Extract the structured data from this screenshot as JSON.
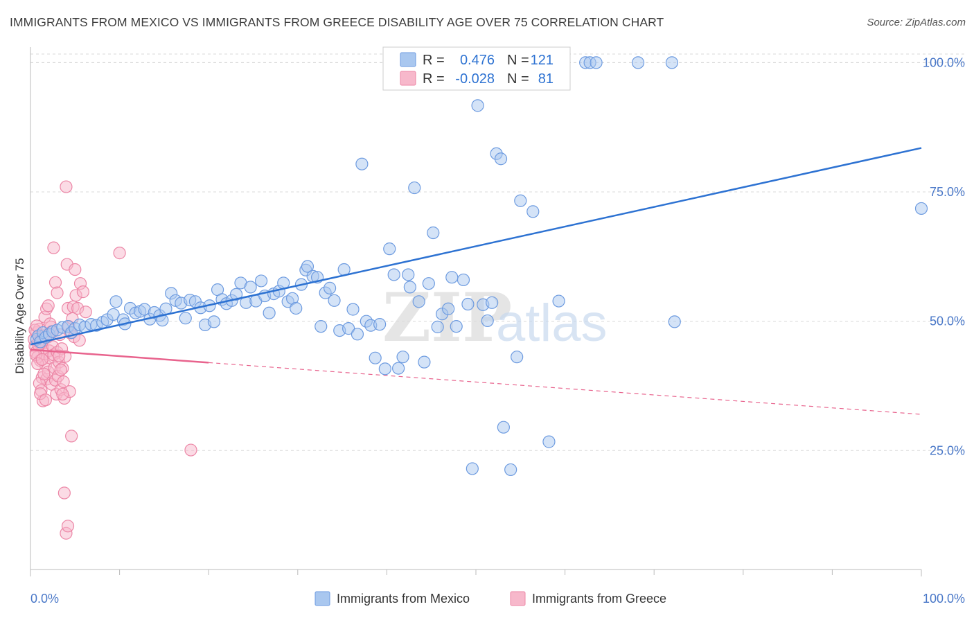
{
  "header": {
    "title": "IMMIGRANTS FROM MEXICO VS IMMIGRANTS FROM GREECE DISABILITY AGE OVER 75 CORRELATION CHART",
    "source": "Source: ZipAtlas.com"
  },
  "watermark": {
    "zip": "ZIP",
    "atlas": "atlas"
  },
  "colors": {
    "mexico_fill": "#a9c7ef",
    "mexico_stroke": "#6d9be0",
    "mexico_line": "#2d72d2",
    "greece_fill": "#f7b8cb",
    "greece_stroke": "#ec86a6",
    "greece_line": "#e8638d",
    "tick_label": "#4a78c8",
    "grid": "#d8d8d8"
  },
  "legend": {
    "rows": [
      {
        "r_label": "R =",
        "r_value": "0.476",
        "n_label": "N =",
        "n_value": "121"
      },
      {
        "r_label": "R =",
        "r_value": "-0.028",
        "n_label": "N =",
        "n_value": "81"
      }
    ]
  },
  "chart_data": {
    "type": "scatter",
    "ylabel": "Disability Age Over 75",
    "xlim": [
      0,
      100
    ],
    "ylim": [
      2,
      103
    ],
    "y_ticks": [
      25,
      50,
      75,
      100
    ],
    "y_tick_labels": [
      "25.0%",
      "50.0%",
      "75.0%",
      "100.0%"
    ],
    "x_tick_labels": [
      "0.0%",
      "100.0%"
    ],
    "grid": true,
    "legend_position": "top-center",
    "series": [
      {
        "name": "Immigrants from Mexico",
        "trend": {
          "x0": 0,
          "y0": 45.5,
          "x1": 100,
          "y1": 83.5,
          "dashed_from": null
        },
        "points": [
          [
            0.7,
            46.5
          ],
          [
            0.9,
            47.2
          ],
          [
            1.1,
            46.0
          ],
          [
            1.4,
            47.8
          ],
          [
            1.7,
            46.9
          ],
          [
            2.1,
            47.5
          ],
          [
            2.5,
            48.0
          ],
          [
            3.0,
            48.3
          ],
          [
            3.6,
            48.8
          ],
          [
            4.2,
            49.0
          ],
          [
            4.6,
            47.8
          ],
          [
            5.0,
            48.6
          ],
          [
            5.5,
            49.3
          ],
          [
            6.1,
            48.9
          ],
          [
            6.8,
            49.4
          ],
          [
            7.4,
            49.2
          ],
          [
            8.1,
            49.8
          ],
          [
            8.6,
            50.3
          ],
          [
            9.3,
            51.3
          ],
          [
            9.6,
            53.8
          ],
          [
            10.4,
            50.3
          ],
          [
            10.6,
            49.5
          ],
          [
            11.2,
            52.5
          ],
          [
            11.8,
            51.6
          ],
          [
            12.3,
            51.9
          ],
          [
            12.8,
            52.3
          ],
          [
            13.4,
            50.4
          ],
          [
            13.9,
            51.7
          ],
          [
            14.5,
            51.1
          ],
          [
            14.8,
            50.2
          ],
          [
            15.2,
            52.4
          ],
          [
            15.8,
            55.4
          ],
          [
            16.3,
            54.0
          ],
          [
            16.9,
            53.5
          ],
          [
            17.4,
            50.6
          ],
          [
            17.9,
            54.1
          ],
          [
            18.5,
            53.8
          ],
          [
            19.1,
            52.6
          ],
          [
            19.6,
            49.3
          ],
          [
            20.1,
            53.0
          ],
          [
            20.6,
            49.9
          ],
          [
            21.0,
            56.1
          ],
          [
            21.5,
            54.2
          ],
          [
            22.0,
            53.4
          ],
          [
            22.6,
            54.0
          ],
          [
            23.1,
            55.2
          ],
          [
            23.6,
            57.4
          ],
          [
            24.2,
            53.6
          ],
          [
            24.7,
            56.6
          ],
          [
            25.3,
            53.9
          ],
          [
            25.9,
            57.8
          ],
          [
            26.3,
            54.9
          ],
          [
            26.8,
            51.6
          ],
          [
            27.3,
            55.3
          ],
          [
            27.9,
            55.8
          ],
          [
            28.4,
            57.4
          ],
          [
            28.9,
            53.8
          ],
          [
            29.4,
            54.4
          ],
          [
            29.8,
            52.5
          ],
          [
            30.4,
            57.1
          ],
          [
            30.9,
            59.9
          ],
          [
            31.1,
            60.6
          ],
          [
            31.7,
            58.7
          ],
          [
            32.2,
            58.5
          ],
          [
            32.6,
            49.0
          ],
          [
            33.1,
            55.5
          ],
          [
            33.6,
            56.4
          ],
          [
            34.1,
            54.0
          ],
          [
            34.7,
            48.2
          ],
          [
            35.2,
            60.0
          ],
          [
            35.7,
            48.6
          ],
          [
            36.2,
            52.3
          ],
          [
            36.7,
            47.5
          ],
          [
            37.2,
            80.4
          ],
          [
            37.7,
            50.0
          ],
          [
            38.2,
            49.2
          ],
          [
            38.7,
            42.9
          ],
          [
            39.2,
            49.4
          ],
          [
            39.8,
            40.8
          ],
          [
            40.3,
            64.0
          ],
          [
            40.8,
            59.0
          ],
          [
            41.3,
            40.9
          ],
          [
            41.8,
            43.1
          ],
          [
            42.4,
            59.0
          ],
          [
            42.6,
            56.6
          ],
          [
            43.1,
            75.8
          ],
          [
            43.6,
            53.8
          ],
          [
            44.2,
            42.1
          ],
          [
            44.7,
            57.3
          ],
          [
            45.2,
            67.1
          ],
          [
            45.7,
            48.9
          ],
          [
            46.2,
            51.4
          ],
          [
            46.9,
            52.4
          ],
          [
            47.3,
            58.5
          ],
          [
            47.8,
            49.0
          ],
          [
            48.6,
            58.0
          ],
          [
            49.1,
            53.3
          ],
          [
            49.6,
            21.5
          ],
          [
            50.2,
            91.7
          ],
          [
            50.8,
            53.2
          ],
          [
            51.3,
            50.1
          ],
          [
            51.8,
            53.6
          ],
          [
            52.3,
            82.4
          ],
          [
            52.8,
            81.4
          ],
          [
            53.1,
            29.5
          ],
          [
            53.9,
            21.3
          ],
          [
            54.6,
            43.1
          ],
          [
            55.0,
            73.3
          ],
          [
            56.4,
            71.2
          ],
          [
            58.2,
            26.7
          ],
          [
            59.3,
            53.9
          ],
          [
            62.3,
            100.0
          ],
          [
            62.8,
            100.0
          ],
          [
            63.5,
            100.0
          ],
          [
            68.2,
            100.0
          ],
          [
            72.0,
            100.0
          ],
          [
            72.3,
            49.9
          ],
          [
            100.0,
            71.8
          ],
          [
            48.7,
            100.0
          ],
          [
            54.5,
            100.0
          ],
          [
            59.0,
            100.0
          ]
        ]
      },
      {
        "name": "Immigrants from Greece",
        "trend": {
          "x0": 0,
          "y0": 44.5,
          "x1": 100,
          "y1": 32.0,
          "dashed_from": 20
        },
        "points": [
          [
            0.4,
            46.5
          ],
          [
            0.5,
            45.2
          ],
          [
            0.6,
            44.0
          ],
          [
            0.7,
            47.8
          ],
          [
            0.8,
            43.1
          ],
          [
            0.9,
            46.0
          ],
          [
            1.0,
            48.5
          ],
          [
            1.1,
            42.4
          ],
          [
            1.2,
            45.6
          ],
          [
            1.3,
            39.1
          ],
          [
            1.4,
            44.8
          ],
          [
            1.5,
            47.2
          ],
          [
            1.6,
            43.7
          ],
          [
            1.7,
            41.5
          ],
          [
            1.8,
            38.8
          ],
          [
            1.9,
            46.9
          ],
          [
            2.0,
            40.2
          ],
          [
            2.1,
            44.3
          ],
          [
            2.2,
            42.9
          ],
          [
            2.3,
            48.9
          ],
          [
            2.4,
            37.8
          ],
          [
            2.5,
            45.1
          ],
          [
            2.6,
            43.5
          ],
          [
            2.7,
            41.0
          ],
          [
            2.8,
            38.6
          ],
          [
            2.9,
            35.9
          ],
          [
            3.0,
            44.0
          ],
          [
            3.1,
            39.4
          ],
          [
            3.2,
            42.1
          ],
          [
            3.3,
            47.4
          ],
          [
            3.4,
            36.8
          ],
          [
            3.5,
            44.7
          ],
          [
            3.6,
            40.9
          ],
          [
            3.7,
            38.3
          ],
          [
            3.8,
            35.1
          ],
          [
            3.9,
            43.2
          ],
          [
            4.0,
            76.0
          ],
          [
            4.1,
            61.0
          ],
          [
            4.2,
            52.5
          ],
          [
            4.3,
            49.0
          ],
          [
            4.4,
            36.4
          ],
          [
            4.5,
            47.7
          ],
          [
            4.6,
            27.8
          ],
          [
            4.7,
            50.5
          ],
          [
            4.8,
            52.8
          ],
          [
            4.9,
            47.0
          ],
          [
            5.0,
            60.0
          ],
          [
            5.1,
            55.0
          ],
          [
            5.3,
            52.5
          ],
          [
            5.6,
            57.3
          ],
          [
            5.9,
            55.7
          ],
          [
            6.2,
            51.8
          ],
          [
            0.6,
            43.5
          ],
          [
            0.8,
            41.8
          ],
          [
            1.0,
            38.0
          ],
          [
            1.2,
            36.6
          ],
          [
            1.4,
            34.6
          ],
          [
            1.6,
            50.8
          ],
          [
            1.8,
            52.4
          ],
          [
            2.0,
            53.0
          ],
          [
            2.2,
            49.5
          ],
          [
            2.4,
            48.0
          ],
          [
            2.6,
            64.2
          ],
          [
            2.8,
            57.5
          ],
          [
            3.0,
            55.5
          ],
          [
            3.2,
            43.3
          ],
          [
            3.4,
            40.6
          ],
          [
            3.6,
            35.9
          ],
          [
            3.8,
            16.8
          ],
          [
            4.0,
            9.0
          ],
          [
            4.2,
            10.4
          ],
          [
            0.5,
            48.3
          ],
          [
            0.7,
            49.1
          ],
          [
            0.9,
            45.4
          ],
          [
            1.1,
            36.0
          ],
          [
            1.3,
            42.6
          ],
          [
            1.5,
            39.8
          ],
          [
            1.7,
            34.8
          ],
          [
            10.0,
            63.2
          ],
          [
            18.0,
            25.1
          ],
          [
            5.5,
            46.3
          ]
        ]
      }
    ]
  }
}
